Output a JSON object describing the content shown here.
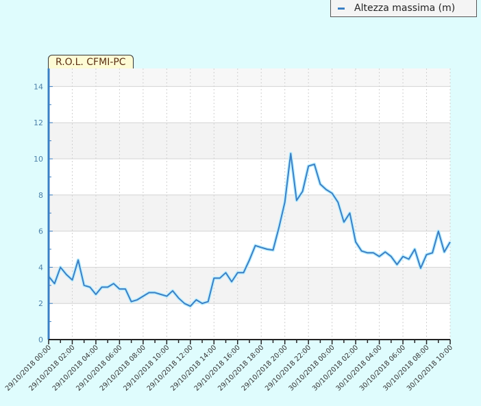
{
  "legend": {
    "label": "Altezza massima (m)",
    "color": "#3a7fc4"
  },
  "station": {
    "label": "R.O.L. CFMI-PC"
  },
  "chart_data": {
    "type": "line",
    "title": "R.O.L. CFMI-PC",
    "xlabel": "",
    "ylabel": "",
    "ylim": [
      0,
      15
    ],
    "yticks": [
      0,
      2,
      4,
      6,
      8,
      10,
      12,
      14
    ],
    "grid": true,
    "legend_position": "top-right",
    "x_tick_labels": [
      "29/10/2018 00:00",
      "29/10/2018 02:00",
      "29/10/2018 04:00",
      "29/10/2018 06:00",
      "29/10/2018 08:00",
      "29/10/2018 10:00",
      "29/10/2018 12:00",
      "29/10/2018 14:00",
      "29/10/2018 16:00",
      "29/10/2018 18:00",
      "29/10/2018 20:00",
      "29/10/2018 22:00",
      "30/10/2018 00:00",
      "30/10/2018 02:00",
      "30/10/2018 04:00",
      "30/10/2018 06:00",
      "30/10/2018 08:00",
      "30/10/2018 10:00"
    ],
    "x_hours_range": [
      0,
      34
    ],
    "series": [
      {
        "name": "Altezza massima (m)",
        "color": "#3a7fc4",
        "x_hours": [
          0,
          0.5,
          1,
          1.5,
          2,
          2.5,
          3,
          3.5,
          4,
          4.5,
          5,
          5.5,
          6,
          6.5,
          7,
          7.5,
          8,
          8.5,
          9,
          9.5,
          10,
          10.5,
          11,
          11.5,
          12,
          12.5,
          13,
          13.5,
          14,
          14.5,
          15,
          15.5,
          16,
          16.5,
          17,
          17.5,
          18,
          18.5,
          19,
          19.5,
          20,
          20.5,
          21,
          21.5,
          22,
          22.5,
          23,
          23.5,
          24,
          24.5,
          25,
          25.5,
          26,
          26.5,
          27,
          27.5,
          28,
          28.5,
          29,
          29.5,
          30,
          30.5,
          31,
          31.5,
          32,
          32.5,
          33,
          33.5,
          34
        ],
        "values": [
          3.5,
          3.1,
          4.0,
          3.6,
          3.3,
          4.4,
          3.0,
          2.9,
          2.5,
          2.9,
          2.9,
          3.1,
          2.8,
          2.8,
          2.1,
          2.2,
          2.4,
          2.6,
          2.6,
          2.5,
          2.4,
          2.7,
          2.3,
          2.0,
          1.85,
          2.2,
          2.0,
          2.1,
          3.4,
          3.4,
          3.7,
          3.2,
          3.7,
          3.7,
          4.4,
          5.2,
          5.1,
          5.0,
          4.95,
          6.2,
          7.6,
          10.3,
          7.7,
          8.2,
          9.6,
          9.7,
          8.6,
          8.3,
          8.1,
          7.6,
          6.5,
          7.0,
          5.4,
          4.9,
          4.8,
          4.8,
          4.6,
          4.85,
          4.6,
          4.15,
          4.6,
          4.45,
          5.0,
          3.95,
          4.7,
          4.8,
          6.0,
          4.85,
          5.4
        ]
      }
    ]
  }
}
